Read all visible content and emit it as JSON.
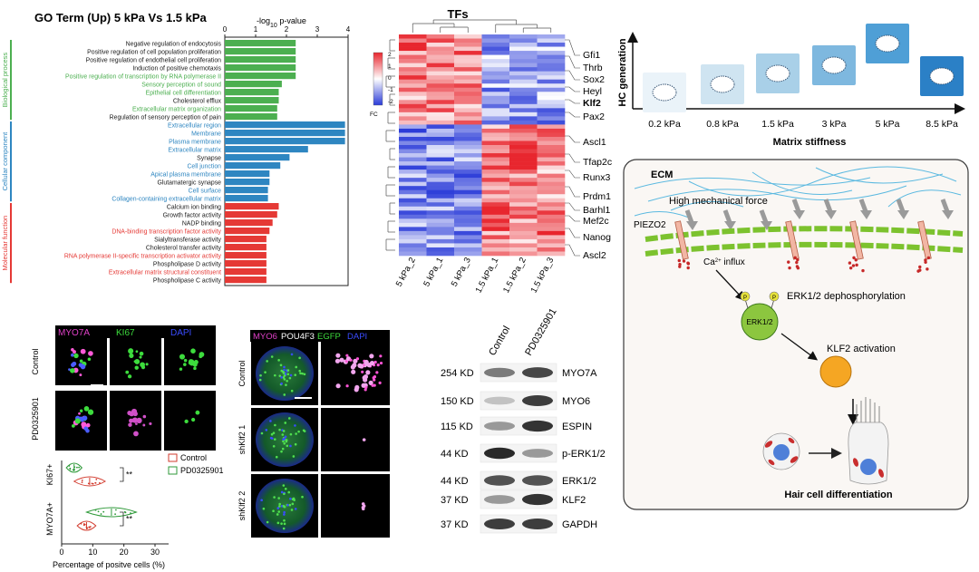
{
  "go_panel": {
    "title": "GO Term (Up)  5 kPa Vs 1.5 kPa",
    "axis_label_prefix": "-log",
    "axis_label_sub": "10",
    "axis_label_suffix": " p-value",
    "ticks": [
      "0",
      "1",
      "2",
      "3",
      "4"
    ],
    "categories": [
      {
        "name": "Biological process",
        "color": "#4caf50"
      },
      {
        "name": "Cellular component",
        "color": "#2e86c1"
      },
      {
        "name": "Molecular function",
        "color": "#e53935"
      }
    ]
  },
  "chart_data": {
    "type": "bar",
    "orientation": "horizontal",
    "xlabel": "-log10 p-value",
    "xlim": [
      0,
      4
    ],
    "bars": [
      {
        "term": "Negative regulation of endocytosis",
        "value": 2.3,
        "category": "Biological process",
        "label_color": "#1a1a1a"
      },
      {
        "term": "Positive regulation of cell population proliferation",
        "value": 2.3,
        "category": "Biological process",
        "label_color": "#1a1a1a"
      },
      {
        "term": "Positive regulation of endothelial cell proliferation",
        "value": 2.3,
        "category": "Biological process",
        "label_color": "#1a1a1a"
      },
      {
        "term": "Induction of positive chemotaxis",
        "value": 2.3,
        "category": "Biological process",
        "label_color": "#1a1a1a"
      },
      {
        "term": "Positive regulation of transcription by RNA polymerase II",
        "value": 2.3,
        "category": "Biological process",
        "label_color": "#4caf50"
      },
      {
        "term": "Sensory perception of sound",
        "value": 1.85,
        "category": "Biological process",
        "label_color": "#4caf50"
      },
      {
        "term": "Epithelial cell differentiation",
        "value": 1.75,
        "category": "Biological process",
        "label_color": "#4caf50"
      },
      {
        "term": "Cholesterol efflux",
        "value": 1.75,
        "category": "Biological process",
        "label_color": "#1a1a1a"
      },
      {
        "term": "Extracellular matrix organization",
        "value": 1.7,
        "category": "Biological process",
        "label_color": "#4caf50"
      },
      {
        "term": "Regulation of sensory perception of pain",
        "value": 1.7,
        "category": "Biological process",
        "label_color": "#1a1a1a"
      },
      {
        "term": "Extracellular region",
        "value": 3.9,
        "category": "Cellular component",
        "label_color": "#2e86c1"
      },
      {
        "term": "Membrane",
        "value": 3.9,
        "category": "Cellular component",
        "label_color": "#2e86c1"
      },
      {
        "term": "Plasma membrane",
        "value": 3.9,
        "category": "Cellular component",
        "label_color": "#2e86c1"
      },
      {
        "term": "Extracellular matrix",
        "value": 2.7,
        "category": "Cellular component",
        "label_color": "#2e86c1"
      },
      {
        "term": "Synapse",
        "value": 2.1,
        "category": "Cellular component",
        "label_color": "#1a1a1a"
      },
      {
        "term": "Cell junction",
        "value": 1.8,
        "category": "Cellular component",
        "label_color": "#2e86c1"
      },
      {
        "term": "Apical plasma membrane",
        "value": 1.45,
        "category": "Cellular component",
        "label_color": "#2e86c1"
      },
      {
        "term": "Glutamatergic synapse",
        "value": 1.45,
        "category": "Cellular component",
        "label_color": "#1a1a1a"
      },
      {
        "term": "Cell surface",
        "value": 1.4,
        "category": "Cellular component",
        "label_color": "#2e86c1"
      },
      {
        "term": "Collagen-containing extracellular matrix",
        "value": 1.4,
        "category": "Cellular component",
        "label_color": "#2e86c1"
      },
      {
        "term": "Calcium ion binding",
        "value": 1.75,
        "category": "Molecular function",
        "label_color": "#1a1a1a"
      },
      {
        "term": "Growth factor activity",
        "value": 1.7,
        "category": "Molecular function",
        "label_color": "#1a1a1a"
      },
      {
        "term": "NADP binding",
        "value": 1.55,
        "category": "Molecular function",
        "label_color": "#1a1a1a"
      },
      {
        "term": "DNA-binding transcription factor activity",
        "value": 1.45,
        "category": "Molecular function",
        "label_color": "#e53935"
      },
      {
        "term": "Sialyltransferase activity",
        "value": 1.35,
        "category": "Molecular function",
        "label_color": "#1a1a1a"
      },
      {
        "term": "Cholesterol transfer activity",
        "value": 1.35,
        "category": "Molecular function",
        "label_color": "#1a1a1a"
      },
      {
        "term": "RNA polymerase II-specific transcription activator activity",
        "value": 1.35,
        "category": "Molecular function",
        "label_color": "#e53935"
      },
      {
        "term": "Phospholipase D activity",
        "value": 1.35,
        "category": "Molecular function",
        "label_color": "#1a1a1a"
      },
      {
        "term": "Extracellular matrix structural constituent",
        "value": 1.35,
        "category": "Molecular function",
        "label_color": "#e53935"
      },
      {
        "term": "Phospholipase C activity",
        "value": 1.35,
        "category": "Molecular function",
        "label_color": "#1a1a1a"
      }
    ]
  },
  "heatmap": {
    "title": "TFs",
    "legend_ticks": [
      "2",
      "1",
      "0",
      "-1",
      "-2"
    ],
    "legend_unit": "FC",
    "columns": [
      "5 kPa_2",
      "5 kPa_1",
      "5 kPa_3",
      "1.5 kPa_1",
      "1.5 kPa_2",
      "1.5 kPa_3"
    ],
    "genes": [
      {
        "name": "Gfi1",
        "bold": false
      },
      {
        "name": "Thrb",
        "bold": false
      },
      {
        "name": "Sox2",
        "bold": false
      },
      {
        "name": "Heyl",
        "bold": false
      },
      {
        "name": "Klf2",
        "bold": true
      },
      {
        "name": "Pax2",
        "bold": false
      },
      {
        "name": "Ascl1",
        "bold": false
      },
      {
        "name": "Tfap2c",
        "bold": false
      },
      {
        "name": "Runx3",
        "bold": false
      },
      {
        "name": "Prdm1",
        "bold": false
      },
      {
        "name": "Barhl1",
        "bold": false
      },
      {
        "name": "Mef2c",
        "bold": false
      },
      {
        "name": "Nanog",
        "bold": false
      },
      {
        "name": "Ascl2",
        "bold": false
      }
    ],
    "colors": {
      "high": "#e8262e",
      "mid": "#ffffff",
      "low": "#2a3bd8"
    }
  },
  "stiffness": {
    "y_label": "HC generation",
    "x_title": "Matrix stiffness",
    "levels": [
      {
        "label": "0.2 kPa",
        "level": 0.1,
        "color": "#eaf3f9"
      },
      {
        "label": "0.8 kPa",
        "level": 0.25,
        "color": "#cfe4f1"
      },
      {
        "label": "1.5 kPa",
        "level": 0.45,
        "color": "#a9d0e8"
      },
      {
        "label": "3 kPa",
        "level": 0.6,
        "color": "#7eb8df"
      },
      {
        "label": "5 kPa",
        "level": 1.0,
        "color": "#4f9fd6"
      },
      {
        "label": "8.5 kPa",
        "level": 0.4,
        "color": "#2b80c6"
      }
    ]
  },
  "mechanism": {
    "ecm_label": "ECM",
    "force_label": "High mechanical force",
    "piezo_label": "PIEZO2",
    "calcium_prefix": "Ca",
    "calcium_sup": "2+",
    "calcium_suffix": " influx",
    "phospho_letter": "P",
    "erk_node": "ERK1/2",
    "erk_label": "ERK1/2 dephosphorylation",
    "klf2_label": "KLF2 activation",
    "outcome_label": "Hair cell differentiation"
  },
  "micro_a": {
    "channels": [
      {
        "label": "MYO7A",
        "color": "#e040c8"
      },
      {
        "label": "KI67",
        "color": "#3ddc3d"
      },
      {
        "label": "DAPI",
        "color": "#3a4cff"
      }
    ],
    "rows": [
      "Control",
      "PD0325901"
    ]
  },
  "violin": {
    "legend": [
      {
        "label": "Control",
        "color": "#d23b2e"
      },
      {
        "label": "PD0325901",
        "color": "#2f9a3a"
      }
    ],
    "rows": [
      "KI67+",
      "MYO7A+"
    ],
    "ticks": [
      "0",
      "10",
      "20",
      "30"
    ],
    "xlabel": "Percentage of positve cells (%)",
    "sig": "**",
    "groups": [
      {
        "marker": "KI67+",
        "treatment": "PD0325901",
        "center": 4,
        "spread": 2.5
      },
      {
        "marker": "KI67+",
        "treatment": "Control",
        "center": 9,
        "spread": 5
      },
      {
        "marker": "MYO7A+",
        "treatment": "PD0325901",
        "center": 16,
        "spread": 8
      },
      {
        "marker": "MYO7A+",
        "treatment": "Control",
        "center": 8,
        "spread": 3
      }
    ]
  },
  "micro_b": {
    "channels": [
      {
        "label": "MYO6",
        "color": "#e040c8"
      },
      {
        "label": "POU4F3",
        "color": "#ffffff"
      },
      {
        "label": "EGFP",
        "color": "#3ddc3d"
      },
      {
        "label": "DAPI",
        "color": "#3a4cff"
      }
    ],
    "rows": [
      "Control",
      "shKlf2 1",
      "shKlf2 2"
    ]
  },
  "western": {
    "lanes": [
      "Control",
      "PD0325901"
    ],
    "blots": [
      {
        "weight": "254 KD",
        "protein": "MYO7A",
        "control": 0.5,
        "treated": 0.75
      },
      {
        "weight": "150 KD",
        "protein": "MYO6",
        "control": 0.15,
        "treated": 0.8
      },
      {
        "weight": "115 KD",
        "protein": "ESPIN",
        "control": 0.35,
        "treated": 0.85
      },
      {
        "weight": "44 KD",
        "protein": "p-ERK1/2",
        "control": 0.9,
        "treated": 0.35
      },
      {
        "weight": "44 KD",
        "protein": "ERK1/2",
        "control": 0.7,
        "treated": 0.7
      },
      {
        "weight": "37 KD",
        "protein": "KLF2",
        "control": 0.35,
        "treated": 0.85
      },
      {
        "weight": "37 KD",
        "protein": "GAPDH",
        "control": 0.8,
        "treated": 0.8
      }
    ]
  }
}
